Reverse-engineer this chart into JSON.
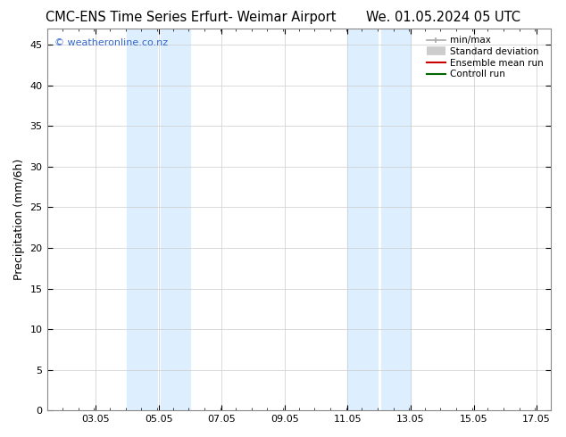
{
  "title_left": "CMC-ENS Time Series Erfurt- Weimar Airport",
  "title_right": "We. 01.05.2024 05 UTC",
  "ylabel": "Precipitation (mm/6h)",
  "watermark": "© weatheronline.co.nz",
  "ylim": [
    0,
    47
  ],
  "yticks": [
    0,
    5,
    10,
    15,
    20,
    25,
    30,
    35,
    40,
    45
  ],
  "xmin": 1.5,
  "xmax": 17.5,
  "xtick_positions": [
    3.05,
    5.05,
    7.05,
    9.05,
    11.05,
    13.05,
    15.05,
    17.05
  ],
  "xtick_labels": [
    "03.05",
    "05.05",
    "07.05",
    "09.05",
    "11.05",
    "13.05",
    "15.05",
    "17.05"
  ],
  "band1_x0": 4.05,
  "band1_x1": 6.05,
  "band1_sep": 5.05,
  "band2_x0": 11.05,
  "band2_x1": 13.05,
  "band2_sep": 12.05,
  "band_color": "#ddeeff",
  "sep_color": "#ffffff",
  "legend_items": [
    {
      "label": "min/max",
      "color": "#aaaaaa",
      "lw": 1.2
    },
    {
      "label": "Standard deviation",
      "color": "#cccccc",
      "lw": 7
    },
    {
      "label": "Ensemble mean run",
      "color": "#cc0000",
      "lw": 1.5
    },
    {
      "label": "Controll run",
      "color": "#006600",
      "lw": 1.5
    }
  ],
  "bg_color": "#ffffff",
  "grid_color": "#cccccc",
  "spine_color": "#888888",
  "title_fontsize": 10.5,
  "label_fontsize": 9,
  "tick_fontsize": 8,
  "legend_fontsize": 7.5,
  "watermark_color": "#3366cc",
  "watermark_fontsize": 8
}
